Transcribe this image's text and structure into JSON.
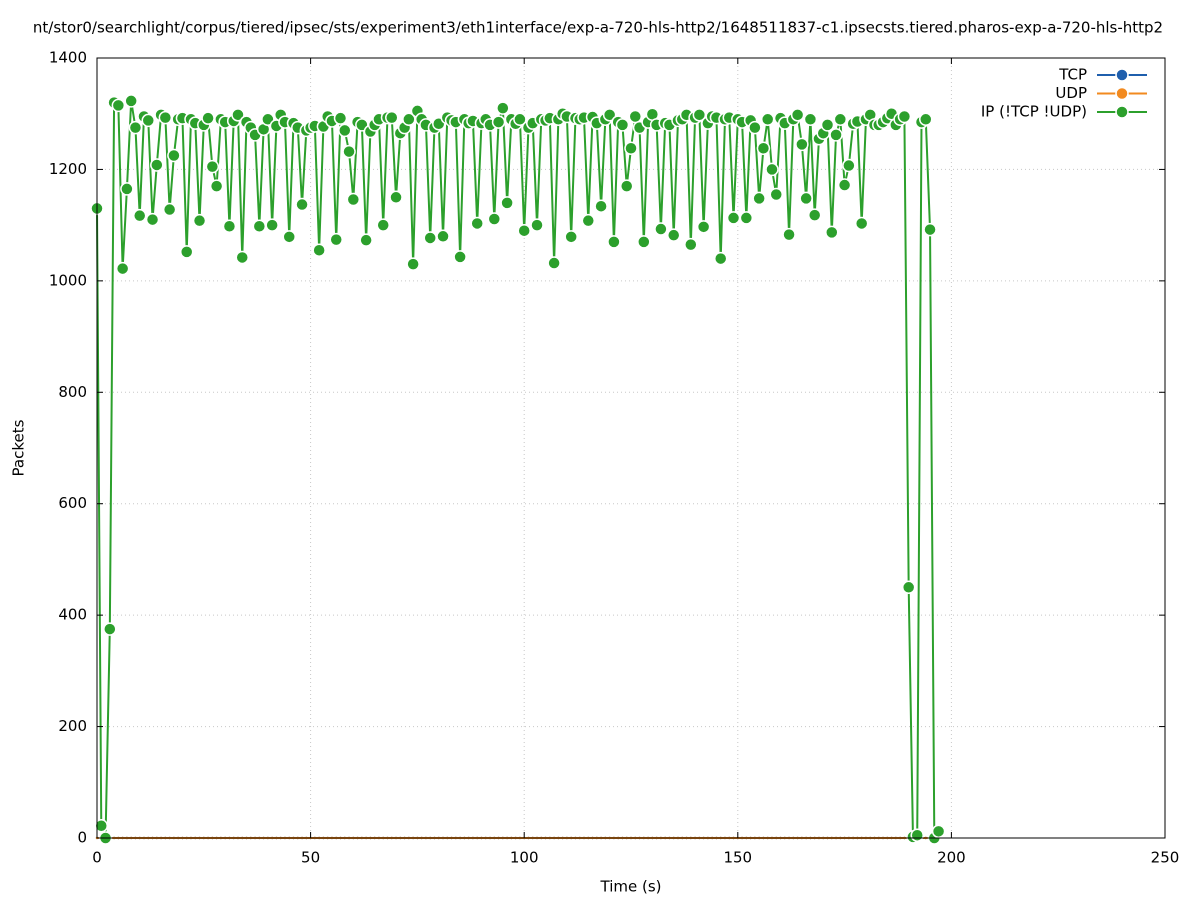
{
  "chart_data": {
    "type": "line",
    "title": "nt/stor0/searchlight/corpus/tiered/ipsec/sts/experiment3/eth1interface/exp-a-720-hls-http2/1648511837-c1.ipsecsts.tiered.pharos-exp-a-720-hls-http2",
    "x_label": "Time (s)",
    "y_label": "Packets",
    "xlim": [
      0,
      250
    ],
    "xticks": [
      0,
      50,
      100,
      150,
      200,
      250
    ],
    "ylim": [
      0,
      1400
    ],
    "yticks": [
      0,
      200,
      400,
      600,
      800,
      1000,
      1200,
      1400
    ],
    "grid": true,
    "legend": "top-right",
    "x": [
      0,
      1,
      2,
      3,
      4,
      5,
      6,
      7,
      8,
      9,
      10,
      11,
      12,
      13,
      14,
      15,
      16,
      17,
      18,
      19,
      20,
      21,
      22,
      23,
      24,
      25,
      26,
      27,
      28,
      29,
      30,
      31,
      32,
      33,
      34,
      35,
      36,
      37,
      38,
      39,
      40,
      41,
      42,
      43,
      44,
      45,
      46,
      47,
      48,
      49,
      50,
      51,
      52,
      53,
      54,
      55,
      56,
      57,
      58,
      59,
      60,
      61,
      62,
      63,
      64,
      65,
      66,
      67,
      68,
      69,
      70,
      71,
      72,
      73,
      74,
      75,
      76,
      77,
      78,
      79,
      80,
      81,
      82,
      83,
      84,
      85,
      86,
      87,
      88,
      89,
      90,
      91,
      92,
      93,
      94,
      95,
      96,
      97,
      98,
      99,
      100,
      101,
      102,
      103,
      104,
      105,
      106,
      107,
      108,
      109,
      110,
      111,
      112,
      113,
      114,
      115,
      116,
      117,
      118,
      119,
      120,
      121,
      122,
      123,
      124,
      125,
      126,
      127,
      128,
      129,
      130,
      131,
      132,
      133,
      134,
      135,
      136,
      137,
      138,
      139,
      140,
      141,
      142,
      143,
      144,
      145,
      146,
      147,
      148,
      149,
      150,
      151,
      152,
      153,
      154,
      155,
      156,
      157,
      158,
      159,
      160,
      161,
      162,
      163,
      164,
      165,
      166,
      167,
      168,
      169,
      170,
      171,
      172,
      173,
      174,
      175,
      176,
      177,
      178,
      179,
      180,
      181,
      182,
      183,
      184,
      185,
      186,
      187,
      188,
      189,
      190,
      191,
      192,
      193,
      194,
      195,
      196,
      197
    ],
    "series": [
      {
        "name": "TCP",
        "color": "#1f5fad",
        "values": [
          0,
          0,
          0,
          0,
          0,
          0,
          0,
          0,
          0,
          0,
          0,
          0,
          0,
          0,
          0,
          0,
          0,
          0,
          0,
          0,
          0,
          0,
          0,
          0,
          0,
          0,
          0,
          0,
          0,
          0,
          0,
          0,
          0,
          0,
          0,
          0,
          0,
          0,
          0,
          0,
          0,
          0,
          0,
          0,
          0,
          0,
          0,
          0,
          0,
          0,
          0,
          0,
          0,
          0,
          0,
          0,
          0,
          0,
          0,
          0,
          0,
          0,
          0,
          0,
          0,
          0,
          0,
          0,
          0,
          0,
          0,
          0,
          0,
          0,
          0,
          0,
          0,
          0,
          0,
          0,
          0,
          0,
          0,
          0,
          0,
          0,
          0,
          0,
          0,
          0,
          0,
          0,
          0,
          0,
          0,
          0,
          0,
          0,
          0,
          0,
          0,
          0,
          0,
          0,
          0,
          0,
          0,
          0,
          0,
          0,
          0,
          0,
          0,
          0,
          0,
          0,
          0,
          0,
          0,
          0,
          0,
          0,
          0,
          0,
          0,
          0,
          0,
          0,
          0,
          0,
          0,
          0,
          0,
          0,
          0,
          0,
          0,
          0,
          0,
          0,
          0,
          0,
          0,
          0,
          0,
          0,
          0,
          0,
          0,
          0,
          0,
          0,
          0,
          0,
          0,
          0,
          0,
          0,
          0,
          0,
          0,
          0,
          0,
          0,
          0,
          0,
          0,
          0,
          0,
          0,
          0,
          0,
          0,
          0,
          0,
          0,
          0,
          0,
          0,
          0,
          0,
          0,
          0,
          0,
          0,
          0,
          0,
          0,
          0,
          0,
          0,
          0,
          0,
          0,
          0,
          0,
          0,
          0
        ]
      },
      {
        "name": "UDP",
        "color": "#f28a1f",
        "values": [
          0,
          0,
          0,
          0,
          0,
          0,
          0,
          0,
          0,
          0,
          0,
          0,
          0,
          0,
          0,
          0,
          0,
          0,
          0,
          0,
          0,
          0,
          0,
          0,
          0,
          0,
          0,
          0,
          0,
          0,
          0,
          0,
          0,
          0,
          0,
          0,
          0,
          0,
          0,
          0,
          0,
          0,
          0,
          0,
          0,
          0,
          0,
          0,
          0,
          0,
          0,
          0,
          0,
          0,
          0,
          0,
          0,
          0,
          0,
          0,
          0,
          0,
          0,
          0,
          0,
          0,
          0,
          0,
          0,
          0,
          0,
          0,
          0,
          0,
          0,
          0,
          0,
          0,
          0,
          0,
          0,
          0,
          0,
          0,
          0,
          0,
          0,
          0,
          0,
          0,
          0,
          0,
          0,
          0,
          0,
          0,
          0,
          0,
          0,
          0,
          0,
          0,
          0,
          0,
          0,
          0,
          0,
          0,
          0,
          0,
          0,
          0,
          0,
          0,
          0,
          0,
          0,
          0,
          0,
          0,
          0,
          0,
          0,
          0,
          0,
          0,
          0,
          0,
          0,
          0,
          0,
          0,
          0,
          0,
          0,
          0,
          0,
          0,
          0,
          0,
          0,
          0,
          0,
          0,
          0,
          0,
          0,
          0,
          0,
          0,
          0,
          0,
          0,
          0,
          0,
          0,
          0,
          0,
          0,
          0,
          0,
          0,
          0,
          0,
          0,
          0,
          0,
          0,
          0,
          0,
          0,
          0,
          0,
          0,
          0,
          0,
          0,
          0,
          0,
          0,
          0,
          0,
          0,
          0,
          0,
          0,
          0,
          0,
          0,
          0,
          0,
          0,
          0,
          0,
          0,
          0,
          0,
          0
        ]
      },
      {
        "name": "IP (!TCP  !UDP)",
        "color": "#2ca02c",
        "values": [
          1130,
          22,
          0,
          375,
          1320,
          1315,
          1022,
          1165,
          1323,
          1275,
          1117,
          1295,
          1288,
          1110,
          1208,
          1298,
          1293,
          1128,
          1225,
          1290,
          1292,
          1052,
          1290,
          1283,
          1108,
          1280,
          1292,
          1205,
          1170,
          1290,
          1285,
          1098,
          1287,
          1298,
          1042,
          1285,
          1275,
          1262,
          1098,
          1272,
          1290,
          1100,
          1278,
          1298,
          1285,
          1079,
          1283,
          1275,
          1137,
          1270,
          1275,
          1278,
          1055,
          1277,
          1295,
          1287,
          1074,
          1292,
          1270,
          1232,
          1146,
          1285,
          1280,
          1073,
          1268,
          1280,
          1290,
          1100,
          1293,
          1293,
          1150,
          1265,
          1275,
          1290,
          1030,
          1305,
          1290,
          1280,
          1077,
          1275,
          1282,
          1080,
          1293,
          1288,
          1285,
          1043,
          1290,
          1283,
          1287,
          1103,
          1283,
          1290,
          1280,
          1111,
          1285,
          1310,
          1140,
          1290,
          1282,
          1290,
          1090,
          1275,
          1283,
          1100,
          1290,
          1288,
          1292,
          1032,
          1290,
          1300,
          1295,
          1079,
          1292,
          1290,
          1293,
          1108,
          1294,
          1283,
          1134,
          1290,
          1298,
          1070,
          1285,
          1280,
          1170,
          1238,
          1295,
          1275,
          1070,
          1285,
          1299,
          1280,
          1093,
          1283,
          1280,
          1082,
          1288,
          1290,
          1298,
          1065,
          1293,
          1298,
          1097,
          1283,
          1295,
          1293,
          1040,
          1290,
          1293,
          1113,
          1290,
          1285,
          1113,
          1288,
          1275,
          1148,
          1238,
          1290,
          1200,
          1155,
          1292,
          1283,
          1083,
          1290,
          1298,
          1245,
          1148,
          1290,
          1118,
          1255,
          1265,
          1280,
          1087,
          1262,
          1290,
          1172,
          1207,
          1282,
          1286,
          1103,
          1290,
          1298,
          1280,
          1280,
          1285,
          1292,
          1300,
          1280,
          1290,
          1295,
          450,
          2,
          5,
          1285,
          1290,
          1092,
          0,
          12
        ]
      }
    ]
  }
}
